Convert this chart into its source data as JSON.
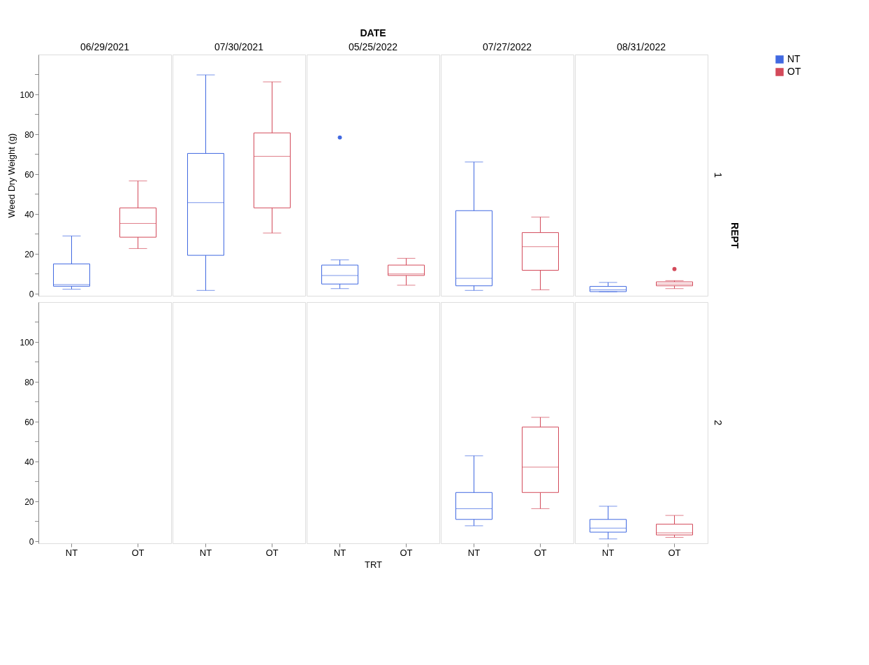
{
  "chart_data": [
    {
      "type": "box",
      "title": "06/29/2021",
      "ylabel": "Weed Dry Weight (g)",
      "legend": "top right",
      "grid": false,
      "tick_labels": "y",
      "categories": [
        "NT",
        "OT"
      ],
      "ylim": [
        -1,
        120
      ],
      "yticks": [
        0,
        {
          "value": 10,
          "label": null
        },
        20,
        {
          "value": 30,
          "label": null
        },
        40,
        {
          "value": 50,
          "label": null
        },
        60,
        {
          "value": 70,
          "label": null
        },
        80,
        {
          "value": 90,
          "label": null
        },
        100,
        {
          "value": 110,
          "label": null
        }
      ],
      "series": [
        {
          "name": "NT",
          "color": "#4169e1",
          "boxes": [
            {
              "low": 2.3,
              "q1": 3.8,
              "median": 4.6,
              "q3": 15,
              "high": 29
            },
            null
          ]
        },
        {
          "name": "OT",
          "color": "#d34a5a",
          "boxes": [
            null,
            {
              "low": 22.7,
              "q1": 28.4,
              "median": 35.3,
              "q3": 43.1,
              "high": 56.6
            }
          ]
        }
      ]
    },
    {
      "type": "box",
      "title": "07/30/2021",
      "grid": false,
      "tick_labels": false,
      "categories": [
        "NT",
        "OT"
      ],
      "ylim": [
        -1,
        120
      ],
      "series": [
        {
          "name": "NT",
          "color": "#4169e1",
          "boxes": [
            {
              "low": 1.7,
              "q1": 19.3,
              "median": 45.7,
              "q3": 70.4,
              "high": 109.8
            },
            null
          ]
        },
        {
          "name": "OT",
          "color": "#d34a5a",
          "boxes": [
            null,
            {
              "low": 30.5,
              "q1": 43.1,
              "median": 69,
              "q3": 80.7,
              "high": 106.3
            }
          ]
        }
      ]
    },
    {
      "type": "box",
      "title": "05/25/2022",
      "annotations": [
        "DATE"
      ],
      "grid": false,
      "tick_labels": false,
      "categories": [
        "NT",
        "OT"
      ],
      "ylim": [
        -1,
        120
      ],
      "series": [
        {
          "name": "NT",
          "color": "#4169e1",
          "boxes": [
            {
              "low": 2.6,
              "q1": 4.9,
              "median": 9.2,
              "q3": 14.4,
              "high": 17,
              "outliers": [
                78.4
              ]
            },
            null
          ]
        },
        {
          "name": "OT",
          "color": "#d34a5a",
          "boxes": [
            null,
            {
              "low": 4.3,
              "q1": 9.2,
              "median": 10,
              "q3": 14.4,
              "high": 17.8
            }
          ]
        }
      ]
    },
    {
      "type": "box",
      "title": "07/27/2022",
      "grid": false,
      "tick_labels": false,
      "categories": [
        "NT",
        "OT"
      ],
      "ylim": [
        -1,
        120
      ],
      "series": [
        {
          "name": "NT",
          "color": "#4169e1",
          "boxes": [
            {
              "low": 1.7,
              "q1": 4,
              "median": 7.8,
              "q3": 41.7,
              "high": 66.1
            },
            null
          ]
        },
        {
          "name": "OT",
          "color": "#d34a5a",
          "boxes": [
            null,
            {
              "low": 2,
              "q1": 11.8,
              "median": 23.6,
              "q3": 30.7,
              "high": 38.5
            }
          ]
        }
      ]
    },
    {
      "type": "box",
      "title": "08/31/2022",
      "y2label": "1",
      "annotations": [
        "REPT"
      ],
      "grid": false,
      "tick_labels": false,
      "categories": [
        "NT",
        "OT"
      ],
      "ylim": [
        -1,
        120
      ],
      "series": [
        {
          "name": "NT",
          "color": "#4169e1",
          "boxes": [
            {
              "low": 1,
              "q1": 1.1,
              "median": 2,
              "q3": 3.7,
              "high": 5.7
            },
            null
          ]
        },
        {
          "name": "OT",
          "color": "#d34a5a",
          "boxes": [
            null,
            {
              "low": 2.6,
              "q1": 4,
              "median": 4.9,
              "q3": 6,
              "high": 6.6,
              "outliers": [
                12.4
              ]
            }
          ]
        }
      ]
    },
    {
      "type": "box",
      "grid": false,
      "categories": [
        "NT",
        "OT"
      ],
      "ylim": [
        -1,
        120
      ],
      "yticks": [
        0,
        {
          "value": 10,
          "label": null
        },
        20,
        {
          "value": 30,
          "label": null
        },
        40,
        {
          "value": 50,
          "label": null
        },
        60,
        {
          "value": 70,
          "label": null
        },
        80,
        {
          "value": 90,
          "label": null
        },
        100,
        {
          "value": 110,
          "label": null
        }
      ],
      "series": [
        {
          "name": "NT",
          "color": "#4169e1",
          "boxes": [
            null,
            null
          ]
        },
        {
          "name": "OT",
          "color": "#d34a5a",
          "boxes": [
            null,
            null
          ]
        }
      ]
    },
    {
      "type": "box",
      "grid": false,
      "tick_labels": "x",
      "categories": [
        "NT",
        "OT"
      ],
      "ylim": [
        -1,
        120
      ],
      "series": [
        {
          "name": "NT",
          "color": "#4169e1",
          "boxes": [
            null,
            null
          ]
        },
        {
          "name": "OT",
          "color": "#d34a5a",
          "boxes": [
            null,
            null
          ]
        }
      ]
    },
    {
      "type": "box",
      "xlabel": "TRT",
      "grid": false,
      "tick_labels": "x",
      "categories": [
        "NT",
        "OT"
      ],
      "ylim": [
        -1,
        120
      ],
      "series": [
        {
          "name": "NT",
          "color": "#4169e1",
          "boxes": [
            null,
            null
          ]
        },
        {
          "name": "OT",
          "color": "#d34a5a",
          "boxes": [
            null,
            null
          ]
        }
      ]
    },
    {
      "type": "box",
      "grid": false,
      "tick_labels": "x",
      "categories": [
        "NT",
        "OT"
      ],
      "ylim": [
        -1,
        120
      ],
      "series": [
        {
          "name": "NT",
          "color": "#4169e1",
          "boxes": [
            {
              "low": 7.8,
              "q1": 11,
              "median": 16.4,
              "q3": 24.5,
              "high": 42.9
            },
            null
          ]
        },
        {
          "name": "OT",
          "color": "#d34a5a",
          "boxes": [
            null,
            {
              "low": 16.4,
              "q1": 24.5,
              "median": 37.2,
              "q3": 57.3,
              "high": 62.2
            }
          ]
        }
      ]
    },
    {
      "type": "box",
      "y2label": "2",
      "grid": false,
      "tick_labels": "x",
      "categories": [
        "NT",
        "OT"
      ],
      "ylim": [
        -1,
        120
      ],
      "series": [
        {
          "name": "NT",
          "color": "#4169e1",
          "boxes": [
            {
              "low": 1.2,
              "q1": 4.6,
              "median": 6.6,
              "q3": 11,
              "high": 17.6
            },
            null
          ]
        },
        {
          "name": "OT",
          "color": "#d34a5a",
          "boxes": [
            null,
            {
              "low": 2,
              "q1": 3.2,
              "median": 4.3,
              "q3": 8.6,
              "high": 13
            }
          ]
        }
      ]
    }
  ]
}
